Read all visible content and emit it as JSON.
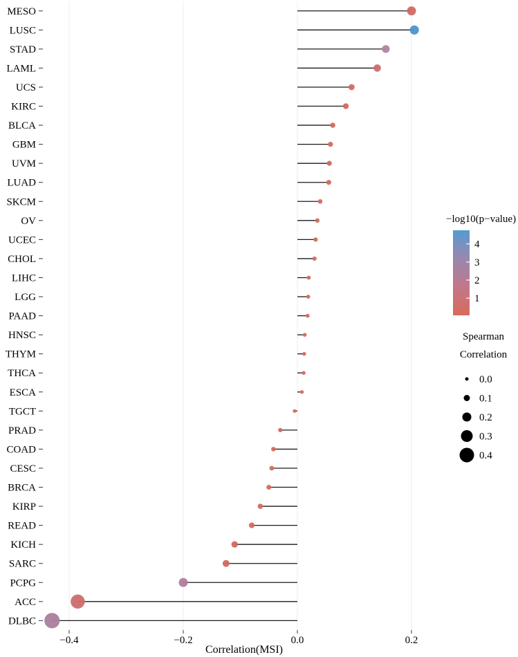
{
  "chart_data": {
    "type": "lollipop",
    "title": "",
    "xlabel": "Correlation(MSI)",
    "ylabel": "",
    "xlim": [
      -0.45,
      0.255
    ],
    "grid": "vertical-light",
    "x_ticks": [
      {
        "value": -0.4,
        "label": "−0.4"
      },
      {
        "value": -0.2,
        "label": "−0.2"
      },
      {
        "value": 0.0,
        "label": "0.0"
      },
      {
        "value": 0.2,
        "label": "0.2"
      }
    ],
    "color_legend": {
      "title": "−log10(p−value)",
      "ticks": [
        {
          "value": 4,
          "label": "4"
        },
        {
          "value": 3,
          "label": "3"
        },
        {
          "value": 2,
          "label": "2"
        },
        {
          "value": 1,
          "label": "1"
        }
      ],
      "vmin": 0.05,
      "vmax": 4.75,
      "gradient": [
        {
          "offset": 0,
          "color": "#549bd3"
        },
        {
          "offset": 30,
          "color": "#9489b2"
        },
        {
          "offset": 65,
          "color": "#c0788c"
        },
        {
          "offset": 100,
          "color": "#d96a5c"
        }
      ]
    },
    "size_legend": {
      "title_line1": "Spearman",
      "title_line2": "Correlation",
      "ticks": [
        {
          "value": 0.0,
          "label": "0.0"
        },
        {
          "value": 0.1,
          "label": "0.1"
        },
        {
          "value": 0.2,
          "label": "0.2"
        },
        {
          "value": 0.3,
          "label": "0.3"
        },
        {
          "value": 0.4,
          "label": "0.4"
        }
      ],
      "dot_color": "#000000"
    },
    "stem_color": "#1a1a1a",
    "points": [
      {
        "label": "MESO",
        "correlation": 0.2,
        "neglog10_p": 1.3,
        "color": "#cf6a63"
      },
      {
        "label": "LUSC",
        "correlation": 0.205,
        "neglog10_p": 4.5,
        "color": "#4f93c8"
      },
      {
        "label": "STAD",
        "correlation": 0.155,
        "neglog10_p": 2.6,
        "color": "#b2849e"
      },
      {
        "label": "LAML",
        "correlation": 0.14,
        "neglog10_p": 1.6,
        "color": "#cb6f6d"
      },
      {
        "label": "UCS",
        "correlation": 0.095,
        "neglog10_p": 0.9,
        "color": "#d66a5e"
      },
      {
        "label": "KIRC",
        "correlation": 0.085,
        "neglog10_p": 1.0,
        "color": "#d4695f"
      },
      {
        "label": "BLCA",
        "correlation": 0.062,
        "neglog10_p": 0.7,
        "color": "#d66a5e"
      },
      {
        "label": "GBM",
        "correlation": 0.058,
        "neglog10_p": 0.6,
        "color": "#d66a5e"
      },
      {
        "label": "UVM",
        "correlation": 0.056,
        "neglog10_p": 0.5,
        "color": "#d66a5e"
      },
      {
        "label": "LUAD",
        "correlation": 0.055,
        "neglog10_p": 0.6,
        "color": "#d66a5e"
      },
      {
        "label": "SKCM",
        "correlation": 0.04,
        "neglog10_p": 0.5,
        "color": "#d66a5e"
      },
      {
        "label": "OV",
        "correlation": 0.035,
        "neglog10_p": 0.5,
        "color": "#d66a5e"
      },
      {
        "label": "UCEC",
        "correlation": 0.032,
        "neglog10_p": 0.4,
        "color": "#d66a5e"
      },
      {
        "label": "CHOL",
        "correlation": 0.03,
        "neglog10_p": 0.4,
        "color": "#d66a5e"
      },
      {
        "label": "LIHC",
        "correlation": 0.02,
        "neglog10_p": 0.3,
        "color": "#d66a5e"
      },
      {
        "label": "LGG",
        "correlation": 0.019,
        "neglog10_p": 0.3,
        "color": "#d66a5e"
      },
      {
        "label": "PAAD",
        "correlation": 0.018,
        "neglog10_p": 0.3,
        "color": "#d66a5e"
      },
      {
        "label": "HNSC",
        "correlation": 0.013,
        "neglog10_p": 0.2,
        "color": "#d66a5e"
      },
      {
        "label": "THYM",
        "correlation": 0.012,
        "neglog10_p": 0.2,
        "color": "#d66a5e"
      },
      {
        "label": "THCA",
        "correlation": 0.011,
        "neglog10_p": 0.2,
        "color": "#d66a5e"
      },
      {
        "label": "ESCA",
        "correlation": 0.008,
        "neglog10_p": 0.2,
        "color": "#d66a5e"
      },
      {
        "label": "TGCT",
        "correlation": -0.005,
        "neglog10_p": 0.1,
        "color": "#d66a5e"
      },
      {
        "label": "PRAD",
        "correlation": -0.03,
        "neglog10_p": 0.4,
        "color": "#d66a5e"
      },
      {
        "label": "COAD",
        "correlation": -0.042,
        "neglog10_p": 0.5,
        "color": "#d66a5e"
      },
      {
        "label": "CESC",
        "correlation": -0.045,
        "neglog10_p": 0.5,
        "color": "#d66a5e"
      },
      {
        "label": "BRCA",
        "correlation": -0.05,
        "neglog10_p": 0.7,
        "color": "#d66a5e"
      },
      {
        "label": "KIRP",
        "correlation": -0.065,
        "neglog10_p": 0.6,
        "color": "#d66a5e"
      },
      {
        "label": "READ",
        "correlation": -0.08,
        "neglog10_p": 0.6,
        "color": "#d66a5e"
      },
      {
        "label": "KICH",
        "correlation": -0.11,
        "neglog10_p": 0.8,
        "color": "#d5695e"
      },
      {
        "label": "SARC",
        "correlation": -0.125,
        "neglog10_p": 1.0,
        "color": "#d2695f"
      },
      {
        "label": "PCPG",
        "correlation": -0.2,
        "neglog10_p": 2.1,
        "color": "#b57b9f"
      },
      {
        "label": "ACC",
        "correlation": -0.385,
        "neglog10_p": 1.4,
        "color": "#cd6d6c"
      },
      {
        "label": "DLBC",
        "correlation": -0.43,
        "neglog10_p": 2.3,
        "color": "#ab7f9d"
      }
    ]
  }
}
